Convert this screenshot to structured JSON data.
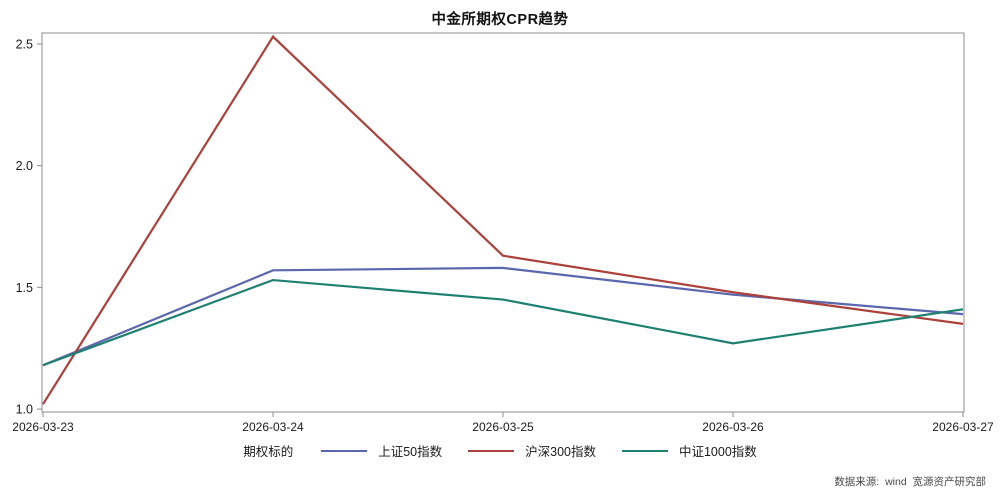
{
  "chart": {
    "title": "中金所期权CPR趋势",
    "legend_title": "期权标的",
    "source": "数据来源:  wind  宽源资产研究部"
  },
  "chart_data": {
    "type": "line",
    "title": "中金所期权CPR趋势",
    "xlabel": "",
    "ylabel": "",
    "x": [
      "2026-03-23",
      "2026-03-24",
      "2026-03-25",
      "2026-03-26",
      "2026-03-27"
    ],
    "series": [
      {
        "name": "上证50指数",
        "color": "#5A67AC",
        "values": [
          1.18,
          1.57,
          1.58,
          1.47,
          1.39
        ]
      },
      {
        "name": "沪深300指数",
        "color": "#AC403B",
        "values": [
          1.02,
          2.53,
          1.63,
          1.48,
          1.35
        ]
      },
      {
        "name": "中证1000指数",
        "color": "#1E8070",
        "values": [
          1.18,
          1.53,
          1.45,
          1.27,
          1.41
        ]
      }
    ],
    "yticks": [
      1.0,
      1.5,
      2.0,
      2.5
    ],
    "ylim": [
      0.988,
      2.545
    ],
    "grid": false,
    "frame": true,
    "legend_title": "期权标的",
    "legend_position": "bottom"
  }
}
